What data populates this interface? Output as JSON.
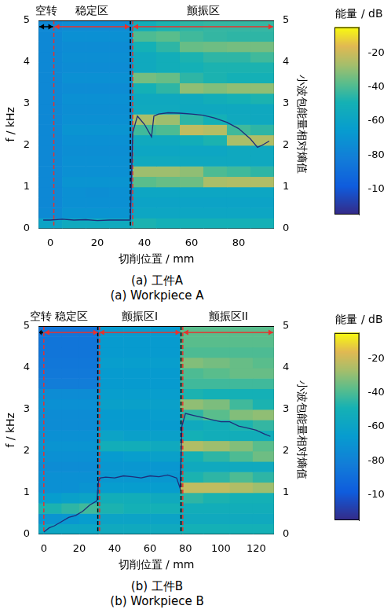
{
  "chart_data": [
    {
      "type": "heatmap",
      "caption_zh": "(a) 工件A",
      "caption_en": "(a) Workpiece A",
      "x_label": "切削位置 / mm",
      "y_label": "f / kHz",
      "y2_label": "小波包能量相对熵值",
      "xlim": [
        -5,
        95
      ],
      "xticks": [
        0,
        20,
        40,
        60,
        80
      ],
      "ylim": [
        0,
        5
      ],
      "yticks": [
        0,
        1,
        2,
        3,
        4,
        5
      ],
      "y2lim": [
        0,
        5
      ],
      "y2ticks": [
        0,
        1,
        2,
        3,
        4,
        5
      ],
      "grid": false,
      "colorbar": {
        "label": "能量 / dB",
        "range": [
          -115,
          -5
        ],
        "ticks": [
          -100,
          -80,
          -60,
          -40,
          -20
        ]
      },
      "heatmap": {
        "x_edges": [
          -5,
          5,
          15,
          25,
          35,
          45,
          55,
          65,
          75,
          85,
          95
        ],
        "y_edges": [
          0,
          0.25,
          0.5,
          0.75,
          1,
          1.25,
          1.5,
          1.75,
          2,
          2.25,
          2.5,
          2.75,
          3,
          3.25,
          3.5,
          3.75,
          4,
          4.25,
          4.5,
          4.75,
          5
        ],
        "values": [
          [
            -60,
            -55,
            -55,
            -55,
            -48,
            -50,
            -50,
            -50,
            -50,
            -50
          ],
          [
            -75,
            -70,
            -70,
            -70,
            -58,
            -58,
            -58,
            -58,
            -58,
            -58
          ],
          [
            -76,
            -72,
            -72,
            -72,
            -60,
            -60,
            -60,
            -60,
            -60,
            -60
          ],
          [
            -76,
            -72,
            -73,
            -72,
            -58,
            -58,
            -58,
            -58,
            -58,
            -58
          ],
          [
            -76,
            -70,
            -70,
            -70,
            -38,
            -36,
            -35,
            -26,
            -25,
            -25
          ],
          [
            -76,
            -72,
            -72,
            -72,
            -28,
            -28,
            -30,
            -40,
            -42,
            -45
          ],
          [
            -76,
            -72,
            -72,
            -72,
            -55,
            -55,
            -56,
            -56,
            -56,
            -56
          ],
          [
            -76,
            -73,
            -73,
            -73,
            -58,
            -58,
            -58,
            -58,
            -56,
            -56
          ],
          [
            -76,
            -72,
            -72,
            -72,
            -55,
            -55,
            -52,
            -48,
            -26,
            -25
          ],
          [
            -76,
            -70,
            -70,
            -70,
            -42,
            -40,
            -22,
            -24,
            -42,
            -45
          ],
          [
            -76,
            -72,
            -72,
            -72,
            -26,
            -28,
            -45,
            -50,
            -55,
            -56
          ],
          [
            -76,
            -73,
            -73,
            -73,
            -55,
            -55,
            -56,
            -56,
            -56,
            -56
          ],
          [
            -76,
            -72,
            -72,
            -72,
            -56,
            -56,
            -55,
            -52,
            -50,
            -48
          ],
          [
            -76,
            -74,
            -74,
            -74,
            -50,
            -45,
            -30,
            -32,
            -30,
            -30
          ],
          [
            -76,
            -72,
            -72,
            -72,
            -34,
            -36,
            -45,
            -48,
            -50,
            -50
          ],
          [
            -76,
            -74,
            -74,
            -74,
            -55,
            -52,
            -50,
            -48,
            -48,
            -48
          ],
          [
            -76,
            -73,
            -73,
            -73,
            -55,
            -52,
            -48,
            -45,
            -45,
            -42
          ],
          [
            -76,
            -74,
            -74,
            -74,
            -50,
            -45,
            -36,
            -35,
            -34,
            -34
          ],
          [
            -76,
            -72,
            -72,
            -72,
            -40,
            -38,
            -42,
            -44,
            -45,
            -45
          ],
          [
            -76,
            -74,
            -74,
            -74,
            -52,
            -48,
            -45,
            -44,
            -44,
            -44
          ]
        ]
      },
      "line": {
        "axis": "y2",
        "color": "#1f2d7a",
        "x": [
          -3,
          0,
          5,
          10,
          15,
          20,
          25,
          30,
          33,
          34,
          35,
          37,
          40,
          43,
          44,
          46,
          50,
          55,
          60,
          65,
          70,
          75,
          80,
          85,
          88,
          90,
          93
        ],
        "values": [
          0.2,
          0.2,
          0.22,
          0.2,
          0.21,
          0.19,
          0.2,
          0.2,
          0.2,
          0.2,
          2.3,
          2.7,
          2.5,
          2.2,
          2.7,
          2.75,
          2.78,
          2.77,
          2.75,
          2.72,
          2.65,
          2.55,
          2.4,
          2.15,
          1.95,
          2.0,
          2.1
        ]
      },
      "regions": [
        {
          "label": "空转",
          "start": -5,
          "end": 1.5,
          "color": "#000000"
        },
        {
          "label": "稳定区",
          "start": 1.5,
          "end": 34,
          "color": "#e8322d"
        },
        {
          "label": "颤振区",
          "start": 35,
          "end": 95,
          "color": "#e8322d"
        }
      ],
      "vlines": [
        {
          "x": 1.5,
          "color": "#e8322d"
        },
        {
          "x": 34,
          "color": "#000000"
        },
        {
          "x": 35,
          "color": "#e8322d"
        }
      ]
    },
    {
      "type": "heatmap",
      "caption_zh": "(b) 工件B",
      "caption_en": "(b) Workpiece B",
      "x_label": "切削位置 / mm",
      "y_label": "f / kHz",
      "y2_label": "小波包能量相对熵值",
      "xlim": [
        -3,
        130
      ],
      "xticks": [
        0,
        20,
        40,
        60,
        80,
        100,
        120
      ],
      "ylim": [
        0,
        5
      ],
      "yticks": [
        0,
        1,
        2,
        3,
        4,
        5
      ],
      "y2lim": [
        0,
        5
      ],
      "y2ticks": [
        0,
        1,
        2,
        3,
        4,
        5
      ],
      "grid": false,
      "colorbar": {
        "label": "能量 / dB",
        "range": [
          -115,
          -5
        ],
        "ticks": [
          -100,
          -80,
          -60,
          -40,
          -20
        ]
      },
      "heatmap": {
        "x_edges": [
          -3,
          10,
          20,
          31,
          45,
          60,
          77,
          90,
          105,
          118,
          130
        ],
        "y_edges": [
          0,
          0.25,
          0.5,
          0.75,
          1,
          1.25,
          1.5,
          1.75,
          2,
          2.25,
          2.5,
          2.75,
          3,
          3.25,
          3.5,
          3.75,
          4,
          4.25,
          4.5,
          4.75,
          5
        ],
        "values": [
          [
            -58,
            -58,
            -58,
            -55,
            -55,
            -55,
            -50,
            -50,
            -50,
            -50
          ],
          [
            -70,
            -68,
            -65,
            -60,
            -60,
            -60,
            -55,
            -55,
            -55,
            -55
          ],
          [
            -48,
            -45,
            -42,
            -48,
            -50,
            -50,
            -52,
            -52,
            -52,
            -52
          ],
          [
            -65,
            -62,
            -60,
            -52,
            -52,
            -55,
            -45,
            -48,
            -50,
            -50
          ],
          [
            -72,
            -72,
            -70,
            -65,
            -65,
            -65,
            -22,
            -22,
            -25,
            -28
          ],
          [
            -72,
            -72,
            -72,
            -68,
            -68,
            -68,
            -48,
            -45,
            -40,
            -45
          ],
          [
            -74,
            -74,
            -74,
            -68,
            -68,
            -68,
            -55,
            -55,
            -55,
            -55
          ],
          [
            -72,
            -72,
            -72,
            -66,
            -64,
            -62,
            -50,
            -45,
            -40,
            -35
          ],
          [
            -70,
            -70,
            -70,
            -52,
            -52,
            -55,
            -25,
            -28,
            -32,
            -38
          ],
          [
            -72,
            -72,
            -72,
            -60,
            -62,
            -62,
            -50,
            -52,
            -52,
            -52
          ],
          [
            -74,
            -74,
            -74,
            -66,
            -66,
            -66,
            -55,
            -52,
            -48,
            -44
          ],
          [
            -74,
            -74,
            -74,
            -66,
            -66,
            -64,
            -45,
            -38,
            -32,
            -30
          ],
          [
            -72,
            -72,
            -72,
            -62,
            -62,
            -62,
            -30,
            -33,
            -42,
            -48
          ],
          [
            -74,
            -74,
            -74,
            -64,
            -64,
            -64,
            -48,
            -50,
            -50,
            -50
          ],
          [
            -82,
            -82,
            -82,
            -66,
            -66,
            -66,
            -42,
            -42,
            -42,
            -42
          ],
          [
            -84,
            -84,
            -84,
            -66,
            -66,
            -66,
            -40,
            -38,
            -36,
            -36
          ],
          [
            -85,
            -85,
            -85,
            -64,
            -64,
            -64,
            -32,
            -34,
            -36,
            -38
          ],
          [
            -86,
            -86,
            -86,
            -66,
            -66,
            -66,
            -40,
            -40,
            -40,
            -40
          ],
          [
            -86,
            -86,
            -86,
            -66,
            -66,
            -66,
            -38,
            -38,
            -38,
            -38
          ],
          [
            -86,
            -86,
            -86,
            -66,
            -66,
            -66,
            -38,
            -38,
            -38,
            -38
          ]
        ]
      },
      "line": {
        "axis": "y2",
        "color": "#1f2d7a",
        "x": [
          0,
          3,
          6,
          10,
          14,
          18,
          22,
          26,
          30,
          31,
          32,
          35,
          40,
          45,
          50,
          55,
          60,
          65,
          70,
          75,
          77,
          78,
          80,
          85,
          90,
          95,
          100,
          105,
          110,
          115,
          120,
          125,
          128
        ],
        "values": [
          0.05,
          0.15,
          0.2,
          0.3,
          0.4,
          0.45,
          0.55,
          0.7,
          0.8,
          1.3,
          1.35,
          1.37,
          1.35,
          1.4,
          1.38,
          1.35,
          1.4,
          1.38,
          1.42,
          1.35,
          1.1,
          2.6,
          2.9,
          2.85,
          2.8,
          2.75,
          2.7,
          2.7,
          2.6,
          2.55,
          2.5,
          2.4,
          2.35
        ]
      },
      "regions": [
        {
          "label": "空转",
          "start": -3,
          "end": 0,
          "color": "#000000"
        },
        {
          "label": "稳定区",
          "start": 0,
          "end": 31,
          "color": "#e8322d"
        },
        {
          "label": "颤振区I",
          "start": 31,
          "end": 77.5,
          "color": "#e8322d"
        },
        {
          "label": "颤振区II",
          "start": 78.5,
          "end": 130,
          "color": "#e8322d"
        }
      ],
      "vlines": [
        {
          "x": 0,
          "color": "#e8322d"
        },
        {
          "x": 30.5,
          "color": "#000000"
        },
        {
          "x": 31.5,
          "color": "#e8322d"
        },
        {
          "x": 77.5,
          "color": "#000000"
        },
        {
          "x": 78.5,
          "color": "#e8322d"
        }
      ]
    }
  ]
}
